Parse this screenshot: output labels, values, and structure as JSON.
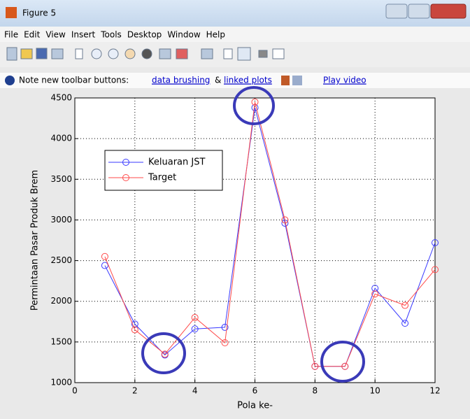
{
  "window": {
    "title": "Figure 5",
    "menu": [
      "File",
      "Edit",
      "View",
      "Insert",
      "Tools",
      "Desktop",
      "Window",
      "Help"
    ],
    "info": {
      "text": "Note new toolbar buttons:",
      "link1": "data brushing",
      "amp": "&",
      "link2": "linked plots",
      "link3": "Play video"
    }
  },
  "chart_data": {
    "type": "line",
    "x_label": "Pola ke-",
    "y_label": "Permintaan Pasar Produk Brem",
    "x": [
      1,
      2,
      3,
      4,
      5,
      6,
      7,
      8,
      9,
      10,
      11,
      12
    ],
    "series": [
      {
        "name": "Keluaran JST",
        "color": "#3a3aff",
        "values": [
          2440,
          1720,
          1340,
          1660,
          1680,
          4380,
          2960,
          1200,
          1200,
          2160,
          1730,
          2720
        ]
      },
      {
        "name": "Target",
        "color": "#ff4a4a",
        "values": [
          2550,
          1650,
          1350,
          1800,
          1490,
          4450,
          3000,
          1200,
          1200,
          2090,
          1950,
          2390
        ]
      }
    ],
    "xlim": [
      0,
      12
    ],
    "xticks": [
      0,
      2,
      4,
      6,
      8,
      10,
      12
    ],
    "ylim": [
      1000,
      4500
    ],
    "yticks": [
      1000,
      1500,
      2000,
      2500,
      3000,
      3500,
      4000,
      4500
    ],
    "grid": true,
    "legend": "upper left"
  }
}
